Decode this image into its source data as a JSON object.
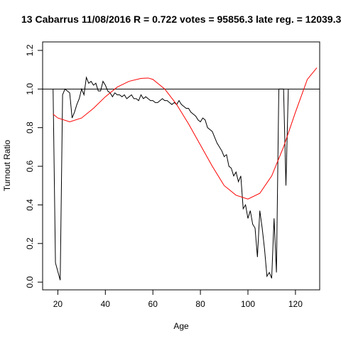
{
  "chart_data": {
    "type": "line",
    "title": "13 Cabarrus 11/08/2016 R = 0.722 votes = 95856.3 late reg. = 12039.3",
    "xlabel": "Age",
    "ylabel": "Turnout Ratio",
    "xlim": [
      13.6,
      130.2
    ],
    "ylim": [
      -0.04,
      1.244
    ],
    "xticks": [
      20,
      40,
      60,
      80,
      100,
      120
    ],
    "yticks": [
      {
        "value": 0,
        "label": "0.0"
      },
      0.2,
      0.4,
      0.6,
      0.8,
      {
        "value": 1,
        "label": "1.0"
      },
      1.2
    ],
    "hline": 1,
    "hline_color": "#000000",
    "series": [
      {
        "color": "#000000",
        "x": [
          18,
          19,
          21,
          22,
          23,
          24,
          25,
          26,
          27,
          28,
          29,
          30,
          31,
          32,
          33,
          34,
          35,
          36,
          37,
          38,
          39,
          40,
          41,
          42,
          43,
          44,
          45,
          46,
          47,
          48,
          49,
          50,
          51,
          52,
          53,
          54,
          55,
          56,
          57,
          58,
          59,
          60,
          61,
          62,
          63,
          64,
          65,
          66,
          67,
          68,
          69,
          70,
          71,
          72,
          73,
          74,
          75,
          76,
          77,
          78,
          79,
          80,
          81,
          82,
          83,
          84,
          85,
          86,
          87,
          88,
          89,
          90,
          91,
          92,
          93,
          94,
          95,
          96,
          97,
          98,
          99,
          100,
          101,
          102,
          103,
          104,
          105,
          106,
          107,
          108,
          109,
          110,
          111,
          112,
          113,
          114,
          115,
          116,
          117
        ],
        "values": [
          1.0,
          0.1,
          0.01,
          0.97,
          1.0,
          0.99,
          0.98,
          0.85,
          0.88,
          0.92,
          0.95,
          1.0,
          0.97,
          1.06,
          1.03,
          1.04,
          1.02,
          1.03,
          0.99,
          0.99,
          1.04,
          1.02,
          0.99,
          0.98,
          0.96,
          0.98,
          0.97,
          0.97,
          0.96,
          0.97,
          0.95,
          0.96,
          0.97,
          0.95,
          0.95,
          0.94,
          0.97,
          0.95,
          0.96,
          0.95,
          0.94,
          0.94,
          0.93,
          0.93,
          0.94,
          0.95,
          0.94,
          0.94,
          0.93,
          0.92,
          0.93,
          0.92,
          0.94,
          0.92,
          0.91,
          0.9,
          0.9,
          0.88,
          0.87,
          0.86,
          0.84,
          0.83,
          0.85,
          0.84,
          0.8,
          0.79,
          0.78,
          0.75,
          0.72,
          0.7,
          0.68,
          0.65,
          0.66,
          0.6,
          0.59,
          0.55,
          0.57,
          0.52,
          0.55,
          0.38,
          0.4,
          0.33,
          0.37,
          0.3,
          0.28,
          0.13,
          0.37,
          0.28,
          0.17,
          0.03,
          0.05,
          0.02,
          0.33,
          0.05,
          1.0,
          1.0,
          1.0,
          0.5,
          1.0
        ]
      },
      {
        "color": "#ff0000",
        "x": [
          18,
          20,
          25,
          30,
          35,
          40,
          45,
          50,
          55,
          58,
          60,
          65,
          70,
          75,
          80,
          85,
          90,
          95,
          100,
          105,
          110,
          115,
          120,
          125,
          129
        ],
        "values": [
          0.87,
          0.85,
          0.83,
          0.85,
          0.9,
          0.96,
          1.01,
          1.04,
          1.055,
          1.057,
          1.05,
          1.0,
          0.92,
          0.82,
          0.71,
          0.6,
          0.5,
          0.45,
          0.43,
          0.46,
          0.55,
          0.7,
          0.88,
          1.05,
          1.11
        ]
      }
    ]
  }
}
